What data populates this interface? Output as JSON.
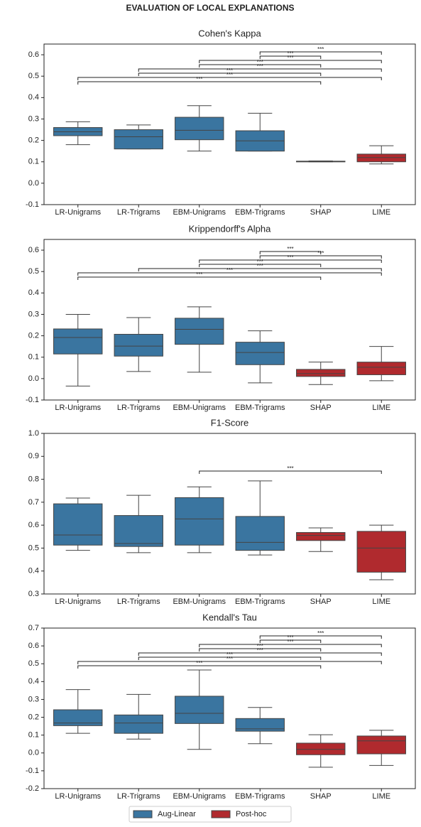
{
  "title": "EVALUATION OF LOCAL EXPLANATIONS",
  "chart_data": [
    {
      "type": "box",
      "title": "Cohen's Kappa",
      "categories": [
        "LR-Unigrams",
        "LR-Trigrams",
        "EBM-Unigrams",
        "EBM-Trigrams",
        "SHAP",
        "LIME"
      ],
      "ylim": [
        -0.1,
        0.65
      ],
      "yticks": [
        -0.1,
        {
          "value": 0,
          "label": "0.0"
        },
        0.1,
        0.2,
        0.3,
        0.4,
        0.5,
        0.6
      ],
      "series": [
        {
          "color": "#3a75a0",
          "boxes": [
            {
              "min": 0.18,
              "q1": 0.222,
              "median": 0.24,
              "q3": 0.26,
              "max": 0.287
            },
            {
              "min": 0.16,
              "q1": 0.16,
              "median": 0.217,
              "q3": 0.25,
              "max": 0.272
            },
            {
              "min": 0.15,
              "q1": 0.203,
              "median": 0.247,
              "q3": 0.308,
              "max": 0.362
            },
            {
              "min": 0.15,
              "q1": 0.15,
              "median": 0.198,
              "q3": 0.245,
              "max": 0.327
            },
            null,
            null
          ]
        },
        {
          "color": "#b02a2e",
          "boxes": [
            null,
            null,
            null,
            null,
            {
              "min": 0.1,
              "q1": 0.1,
              "median": 0.102,
              "q3": 0.103,
              "max": 0.104
            },
            {
              "min": 0.09,
              "q1": 0.1,
              "median": 0.12,
              "q3": 0.136,
              "max": 0.175
            }
          ]
        }
      ],
      "annotations": [
        {
          "from": 0,
          "to": 4,
          "label": "***"
        },
        {
          "from": 0,
          "to": 5,
          "label": "***"
        },
        {
          "from": 1,
          "to": 4,
          "label": "***"
        },
        {
          "from": 1,
          "to": 5,
          "label": "***"
        },
        {
          "from": 2,
          "to": 4,
          "label": "***"
        },
        {
          "from": 2,
          "to": 5,
          "label": "***"
        },
        {
          "from": 3,
          "to": 4,
          "label": "***"
        },
        {
          "from": 3,
          "to": 5,
          "label": "***"
        }
      ]
    },
    {
      "type": "box",
      "title": "Krippendorff's Alpha",
      "categories": [
        "LR-Unigrams",
        "LR-Trigrams",
        "EBM-Unigrams",
        "EBM-Trigrams",
        "SHAP",
        "LIME"
      ],
      "ylim": [
        -0.1,
        0.65
      ],
      "yticks": [
        -0.1,
        {
          "value": 0,
          "label": "0.0"
        },
        0.1,
        0.2,
        0.3,
        0.4,
        0.5,
        0.6
      ],
      "series": [
        {
          "color": "#3a75a0",
          "boxes": [
            {
              "min": -0.035,
              "q1": 0.115,
              "median": 0.192,
              "q3": 0.232,
              "max": 0.3
            },
            {
              "min": 0.033,
              "q1": 0.105,
              "median": 0.152,
              "q3": 0.207,
              "max": 0.285
            },
            {
              "min": 0.03,
              "q1": 0.16,
              "median": 0.23,
              "q3": 0.282,
              "max": 0.335
            },
            {
              "min": -0.02,
              "q1": 0.065,
              "median": 0.122,
              "q3": 0.17,
              "max": 0.223
            },
            null,
            null
          ]
        },
        {
          "color": "#b02a2e",
          "boxes": [
            null,
            null,
            null,
            null,
            {
              "min": -0.028,
              "q1": 0.01,
              "median": 0.023,
              "q3": 0.043,
              "max": 0.077
            },
            {
              "min": -0.01,
              "q1": 0.018,
              "median": 0.053,
              "q3": 0.077,
              "max": 0.15
            }
          ]
        }
      ],
      "annotations": [
        {
          "from": 0,
          "to": 4,
          "label": "***"
        },
        {
          "from": 0,
          "to": 5,
          "label": "***"
        },
        {
          "from": 1,
          "to": 5,
          "label": "***"
        },
        {
          "from": 2,
          "to": 4,
          "label": "***"
        },
        {
          "from": 2,
          "to": 5,
          "label": "***"
        },
        {
          "from": 3,
          "to": 5,
          "label": "***"
        },
        {
          "from": 3,
          "to": 4,
          "label": "***"
        }
      ]
    },
    {
      "type": "box",
      "title": "F1-Score",
      "categories": [
        "LR-Unigrams",
        "LR-Trigrams",
        "EBM-Unigrams",
        "EBM-Trigrams",
        "SHAP",
        "LIME"
      ],
      "ylim": [
        0.3,
        1.0
      ],
      "yticks": [
        0.3,
        0.4,
        0.5,
        0.6,
        0.7,
        0.8,
        0.9,
        {
          "value": 1.0,
          "label": "1.0"
        }
      ],
      "series": [
        {
          "color": "#3a75a0",
          "boxes": [
            {
              "min": 0.49,
              "q1": 0.513,
              "median": 0.557,
              "q3": 0.693,
              "max": 0.718
            },
            {
              "min": 0.48,
              "q1": 0.507,
              "median": 0.52,
              "q3": 0.642,
              "max": 0.73
            },
            {
              "min": 0.48,
              "q1": 0.513,
              "median": 0.627,
              "q3": 0.72,
              "max": 0.767
            },
            {
              "min": 0.47,
              "q1": 0.49,
              "median": 0.525,
              "q3": 0.638,
              "max": 0.793
            },
            null,
            null
          ]
        },
        {
          "color": "#b02a2e",
          "boxes": [
            null,
            null,
            null,
            null,
            {
              "min": 0.485,
              "q1": 0.533,
              "median": 0.555,
              "q3": 0.568,
              "max": 0.588
            },
            {
              "min": 0.362,
              "q1": 0.395,
              "median": 0.5,
              "q3": 0.573,
              "max": 0.6
            }
          ]
        }
      ],
      "annotations": [
        {
          "from": 2,
          "to": 5,
          "label": "***"
        }
      ]
    },
    {
      "type": "box",
      "title": "Kendall's Tau",
      "categories": [
        "LR-Unigrams",
        "LR-Trigrams",
        "EBM-Unigrams",
        "EBM-Trigrams",
        "SHAP",
        "LIME"
      ],
      "ylim": [
        -0.2,
        0.7
      ],
      "yticks": [
        -0.2,
        -0.1,
        {
          "value": 0,
          "label": "0.0"
        },
        0.1,
        0.2,
        0.3,
        0.4,
        0.5,
        0.6,
        0.7
      ],
      "series": [
        {
          "name": "Aug-Linear",
          "color": "#3a75a0",
          "boxes": [
            {
              "min": 0.11,
              "q1": 0.153,
              "median": 0.168,
              "q3": 0.242,
              "max": 0.355
            },
            {
              "min": 0.078,
              "q1": 0.11,
              "median": 0.168,
              "q3": 0.213,
              "max": 0.328
            },
            {
              "min": 0.02,
              "q1": 0.165,
              "median": 0.222,
              "q3": 0.318,
              "max": 0.465
            },
            {
              "min": 0.052,
              "q1": 0.122,
              "median": 0.135,
              "q3": 0.193,
              "max": 0.255
            },
            null,
            null
          ]
        },
        {
          "name": "Post-hoc",
          "color": "#b02a2e",
          "boxes": [
            null,
            null,
            null,
            null,
            {
              "min": -0.08,
              "q1": -0.01,
              "median": 0.02,
              "q3": 0.055,
              "max": 0.102
            },
            {
              "min": -0.07,
              "q1": -0.005,
              "median": 0.068,
              "q3": 0.095,
              "max": 0.127
            }
          ]
        }
      ],
      "annotations": [
        {
          "from": 0,
          "to": 4,
          "label": "***"
        },
        {
          "from": 0,
          "to": 5,
          "label": "***"
        },
        {
          "from": 1,
          "to": 4,
          "label": "***"
        },
        {
          "from": 1,
          "to": 5,
          "label": "***"
        },
        {
          "from": 2,
          "to": 4,
          "label": "***"
        },
        {
          "from": 2,
          "to": 5,
          "label": "***"
        },
        {
          "from": 3,
          "to": 4,
          "label": "***"
        },
        {
          "from": 3,
          "to": 5,
          "label": "***"
        }
      ],
      "legend": "bottom"
    }
  ]
}
